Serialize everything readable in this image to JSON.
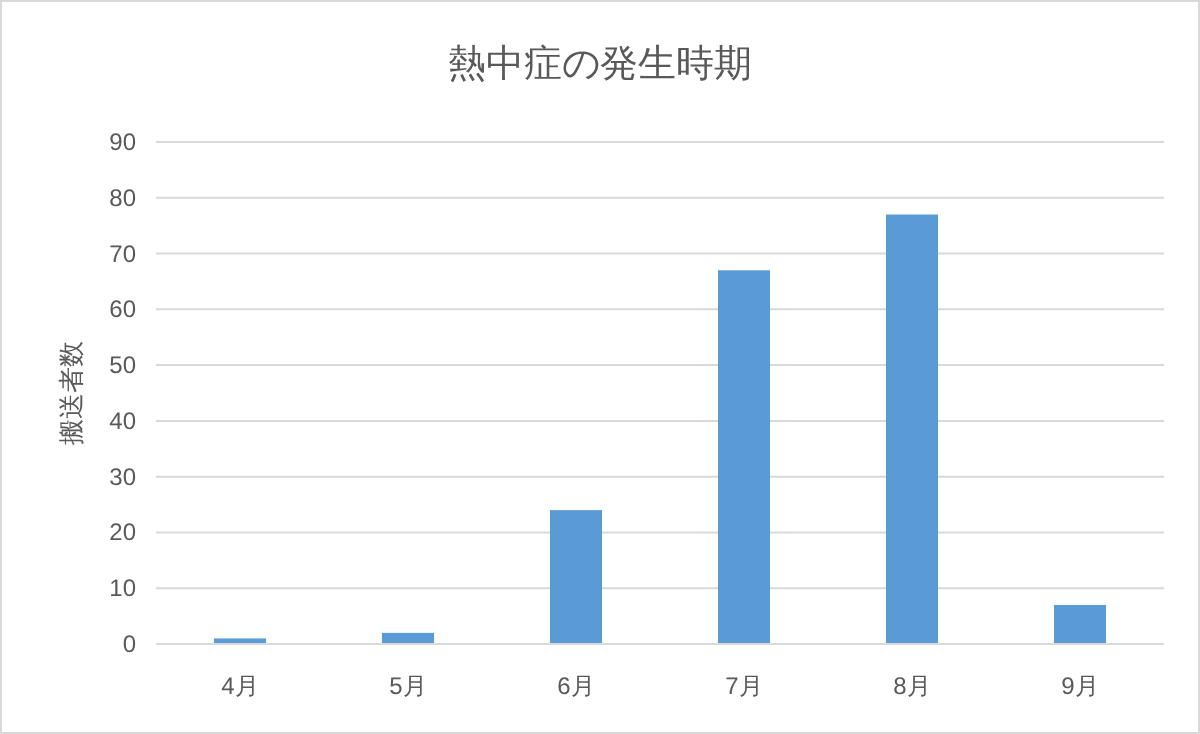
{
  "chart_data": {
    "type": "bar",
    "title": "熱中症の発生時期",
    "ylabel": "搬送者数",
    "categories": [
      "4月",
      "5月",
      "6月",
      "7月",
      "8月",
      "9月"
    ],
    "values": [
      1,
      2,
      24,
      67,
      77,
      7
    ],
    "color": "#5b9bd5",
    "ylim": [
      0,
      90
    ],
    "yticks": [
      0,
      10,
      20,
      30,
      40,
      50,
      60,
      70,
      80,
      90
    ],
    "grid": "y"
  }
}
